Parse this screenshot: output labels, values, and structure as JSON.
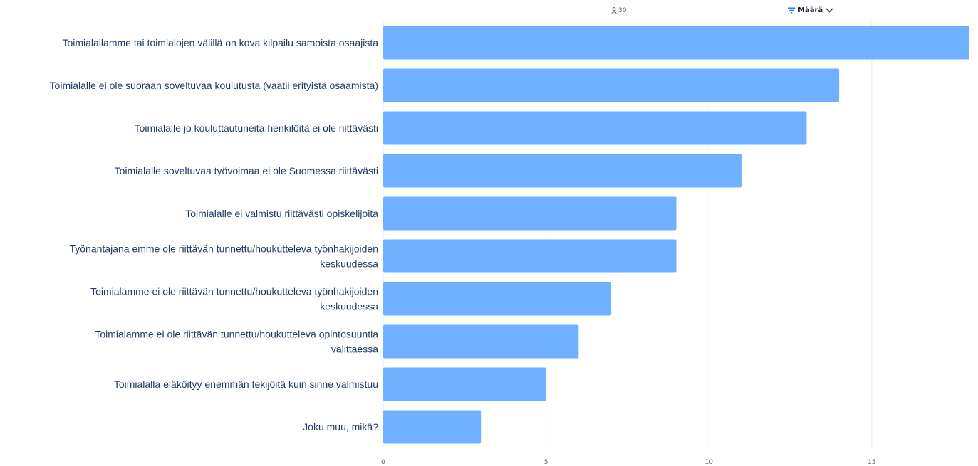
{
  "header": {
    "respondents": "30",
    "respondents_icon": "person-icon",
    "sort_label": "Määrä",
    "sort_icon": "sort-icon",
    "dropdown_icon": "chevron-down-icon"
  },
  "colors": {
    "bar": "#6fb1ff",
    "grid": "#e6e9ef",
    "label": "#1f3a5f",
    "tick": "#5b6470",
    "accent": "#1a73e8"
  },
  "chart_data": {
    "type": "bar",
    "orientation": "horizontal",
    "categories": [
      [
        "Toimialallamme tai toimialojen välillä on kova kilpailu samoista osaajista"
      ],
      [
        "Toimialalle ei ole suoraan soveltuvaa koulutusta (vaatii erityistä osaamista)"
      ],
      [
        "Toimialalle jo kouluttautuneita henkilöitä ei ole riittävästi"
      ],
      [
        "Toimialalle soveltuvaa työvoimaa ei ole Suomessa riittävästi"
      ],
      [
        "Toimialalle ei valmistu riittävästi opiskelijoita"
      ],
      [
        "Työnantajana emme ole riittävän tunnettu/houkutteleva työnhakijoiden",
        "keskuudessa"
      ],
      [
        "Toimialamme ei ole riittävän tunnettu/houkutteleva työnhakijoiden",
        "keskuudessa"
      ],
      [
        "Toimialamme ei ole riittävän tunnettu/houkutteleva opintosuuntia",
        "valittaessa"
      ],
      [
        "Toimialalla eläköityy enemmän tekijöitä kuin sinne valmistuu"
      ],
      [
        "Joku muu, mikä?"
      ]
    ],
    "values": [
      18,
      14,
      13,
      11,
      9,
      9,
      7,
      6,
      5,
      3
    ],
    "xticks": [
      0,
      5,
      10,
      15
    ],
    "xlim": [
      0,
      18
    ],
    "grid": true,
    "title": "",
    "xlabel": "",
    "ylabel": ""
  }
}
